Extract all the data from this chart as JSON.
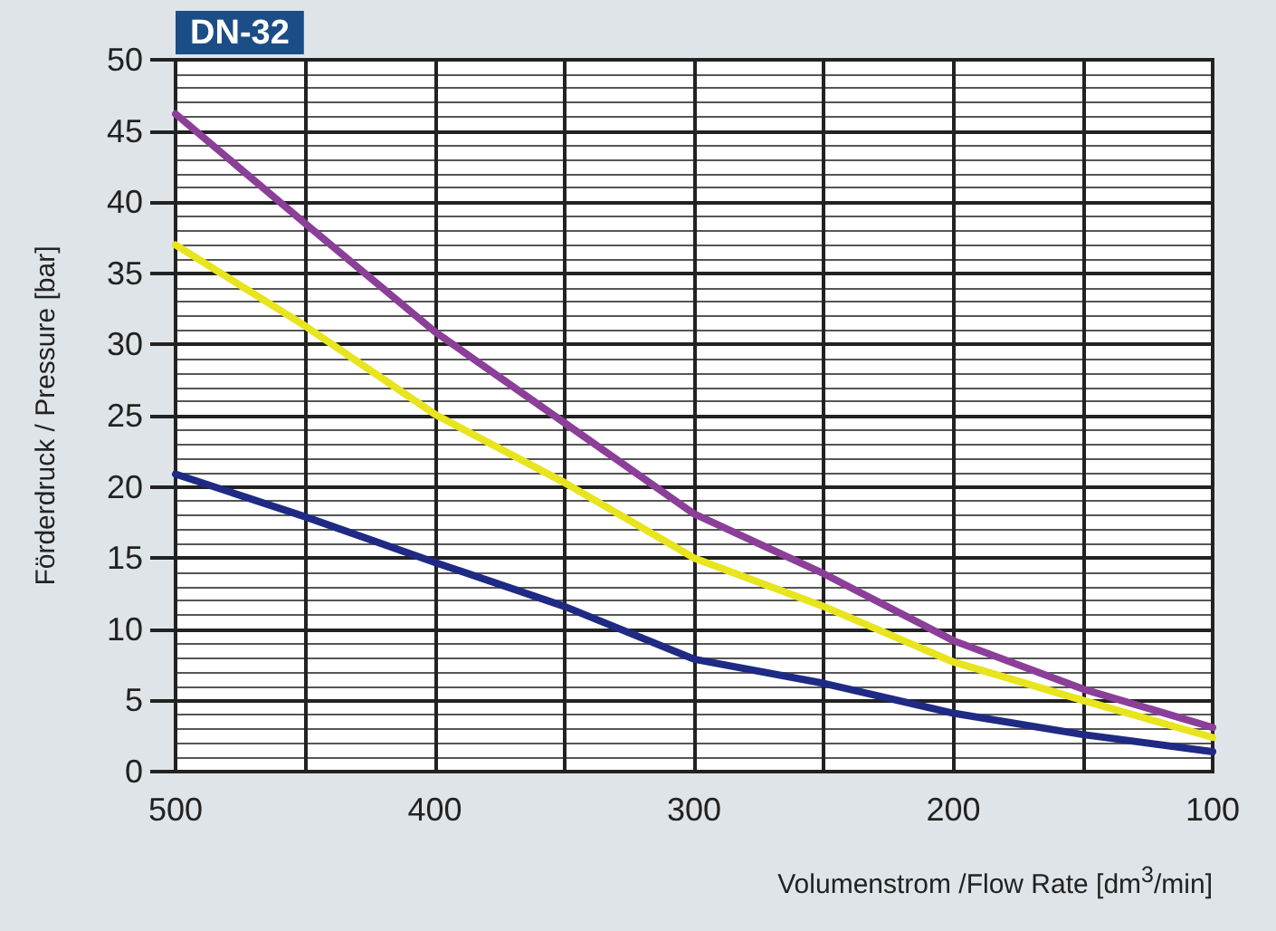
{
  "chart_data": {
    "type": "line",
    "title": "DN-32",
    "xlabel": "Volumenstrom /Flow Rate [dm$^{3}$/min]",
    "ylabel": "Förderdruck / Pressure [bar]",
    "x": [
      500,
      450,
      400,
      350,
      300,
      250,
      200,
      150,
      100
    ],
    "series": [
      {
        "color": "#8b3f98",
        "values": [
          46.2,
          38.5,
          30.9,
          24.5,
          18.1,
          13.9,
          9.2,
          5.8,
          3.1
        ]
      },
      {
        "color": "#e8e41e",
        "values": [
          37,
          31.3,
          25.1,
          20.3,
          15,
          11.6,
          7.7,
          5,
          2.4
        ]
      },
      {
        "color": "#1f2a84",
        "values": [
          20.9,
          17.9,
          14.7,
          11.6,
          7.9,
          6.2,
          4.1,
          2.6,
          1.4
        ]
      }
    ],
    "xlim": [
      500,
      100
    ],
    "xticks": [
      500,
      400,
      300,
      200,
      100
    ],
    "ylim": [
      0,
      50
    ],
    "yticks": [
      0,
      5,
      10,
      15,
      20,
      25,
      30,
      35,
      40,
      45,
      50
    ],
    "grid": true,
    "marker": "none",
    "line_style": "solid"
  }
}
